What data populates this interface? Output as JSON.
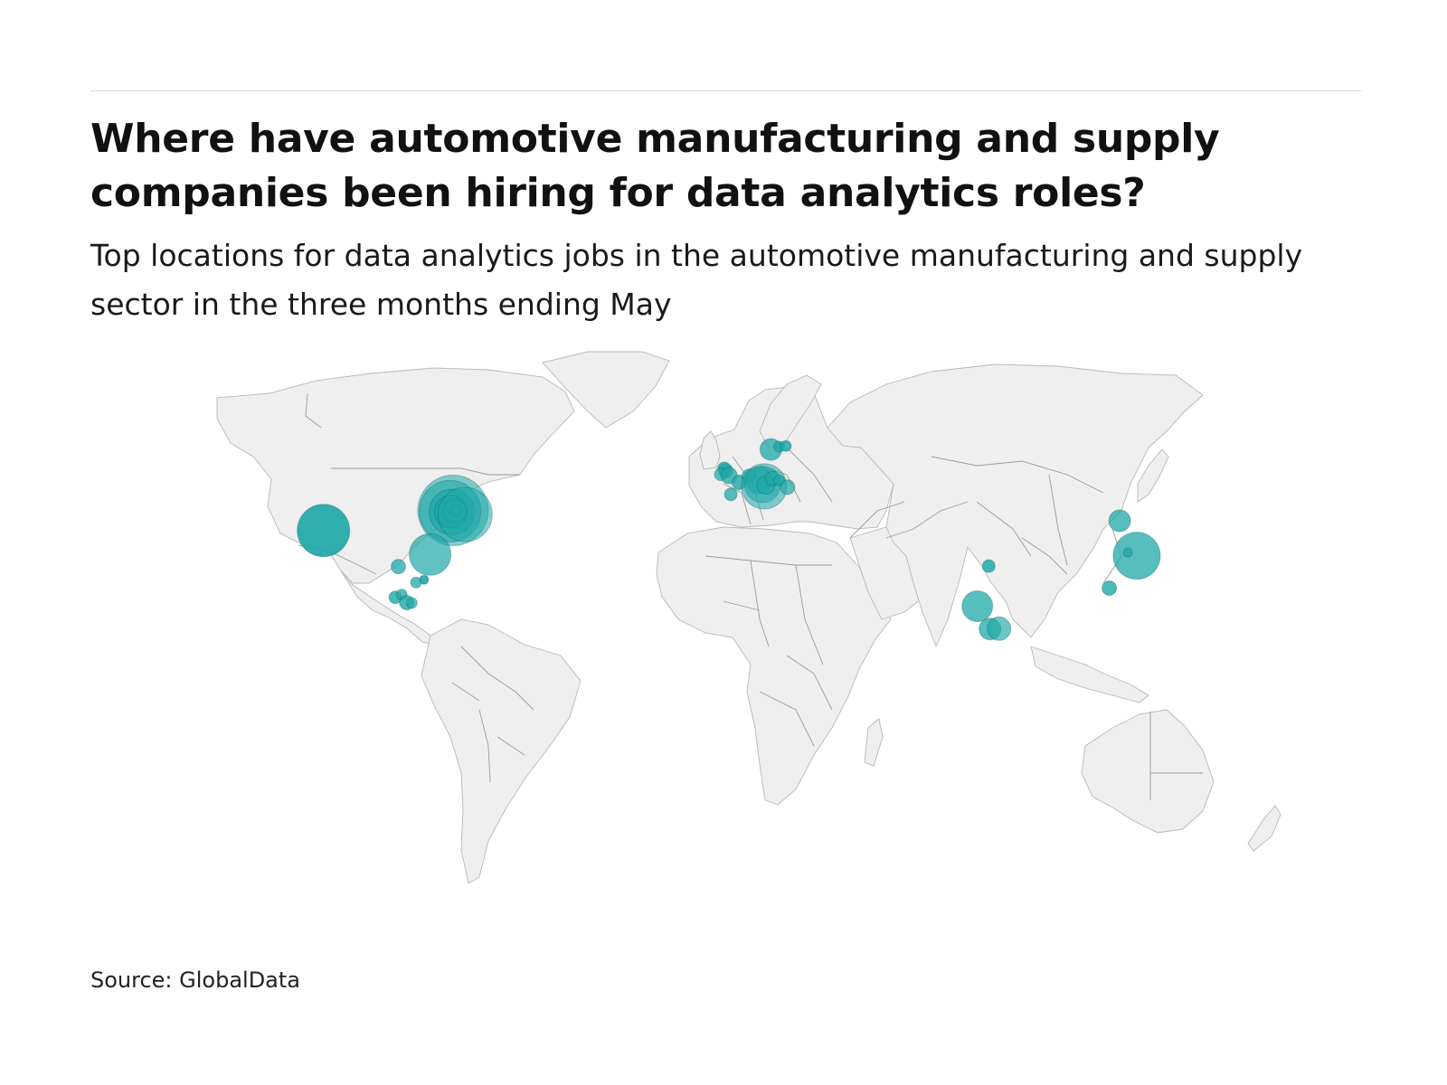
{
  "header": {
    "title": "Where have automotive manufacturing and supply companies been hiring for data analytics roles?",
    "subtitle": "Top locations for data analytics jobs in the automotive manufacturing and supply sector in the three months ending May"
  },
  "footer": {
    "source": "Source: GlobalData"
  },
  "colors": {
    "bubble": "#1fa8a8",
    "land": "#efefef",
    "border": "#9a9a9a"
  },
  "chart_data": {
    "type": "bubble-map",
    "region": "world",
    "points": [
      {
        "lon": -121.9,
        "lat": 37.5,
        "size": 58,
        "opacity": 0.92
      },
      {
        "lon": -83.1,
        "lat": 42.5,
        "size": 78,
        "opacity": 0.55
      },
      {
        "lon": -84.0,
        "lat": 42.3,
        "size": 68,
        "opacity": 0.6
      },
      {
        "lon": -83.5,
        "lat": 42.1,
        "size": 50,
        "opacity": 0.7
      },
      {
        "lon": -83.8,
        "lat": 42.2,
        "size": 36,
        "opacity": 0.75
      },
      {
        "lon": -82.6,
        "lat": 42.4,
        "size": 26,
        "opacity": 0.8
      },
      {
        "lon": -82.3,
        "lat": 42.6,
        "size": 12,
        "opacity": 0.9
      },
      {
        "lon": -79.5,
        "lat": 41.5,
        "size": 60,
        "opacity": 0.55
      },
      {
        "lon": -90.0,
        "lat": 31.5,
        "size": 46,
        "opacity": 0.7
      },
      {
        "lon": -99.5,
        "lat": 28.5,
        "size": 16,
        "opacity": 0.75
      },
      {
        "lon": -94.2,
        "lat": 24.5,
        "size": 12,
        "opacity": 0.75
      },
      {
        "lon": -91.8,
        "lat": 25.2,
        "size": 10,
        "opacity": 0.9
      },
      {
        "lon": -100.4,
        "lat": 20.8,
        "size": 14,
        "opacity": 0.8
      },
      {
        "lon": -98.5,
        "lat": 21.5,
        "size": 12,
        "opacity": 0.75
      },
      {
        "lon": -97.0,
        "lat": 19.5,
        "size": 16,
        "opacity": 0.8
      },
      {
        "lon": -95.5,
        "lat": 19.4,
        "size": 12,
        "opacity": 0.7
      },
      {
        "lon": -1.5,
        "lat": 52.4,
        "size": 16,
        "opacity": 0.75
      },
      {
        "lon": -2.0,
        "lat": 53.0,
        "size": 14,
        "opacity": 0.8
      },
      {
        "lon": -3.0,
        "lat": 51.5,
        "size": 14,
        "opacity": 0.7
      },
      {
        "lon": -0.5,
        "lat": 51.2,
        "size": 18,
        "opacity": 0.75
      },
      {
        "lon": 2.5,
        "lat": 49.5,
        "size": 16,
        "opacity": 0.8
      },
      {
        "lon": 5.5,
        "lat": 51.0,
        "size": 16,
        "opacity": 0.75
      },
      {
        "lon": 8.5,
        "lat": 50.0,
        "size": 30,
        "opacity": 0.7
      },
      {
        "lon": 9.5,
        "lat": 49.0,
        "size": 40,
        "opacity": 0.6
      },
      {
        "lon": 10.0,
        "lat": 48.5,
        "size": 50,
        "opacity": 0.55
      },
      {
        "lon": 10.5,
        "lat": 48.8,
        "size": 20,
        "opacity": 0.75
      },
      {
        "lon": 12.5,
        "lat": 50.5,
        "size": 16,
        "opacity": 0.75
      },
      {
        "lon": 14.5,
        "lat": 50.0,
        "size": 12,
        "opacity": 0.8
      },
      {
        "lon": 17.0,
        "lat": 48.3,
        "size": 16,
        "opacity": 0.7
      },
      {
        "lon": 12.0,
        "lat": 57.7,
        "size": 24,
        "opacity": 0.75
      },
      {
        "lon": 14.5,
        "lat": 58.4,
        "size": 12,
        "opacity": 0.85
      },
      {
        "lon": 16.5,
        "lat": 58.6,
        "size": 12,
        "opacity": 0.85
      },
      {
        "lon": 0.0,
        "lat": 46.5,
        "size": 14,
        "opacity": 0.75
      },
      {
        "lon": 77.2,
        "lat": 28.6,
        "size": 14,
        "opacity": 0.85
      },
      {
        "lon": 73.8,
        "lat": 18.6,
        "size": 34,
        "opacity": 0.75
      },
      {
        "lon": 77.6,
        "lat": 12.9,
        "size": 24,
        "opacity": 0.75
      },
      {
        "lon": 80.3,
        "lat": 13.0,
        "size": 26,
        "opacity": 0.65
      },
      {
        "lon": 116.4,
        "lat": 39.9,
        "size": 24,
        "opacity": 0.75
      },
      {
        "lon": 113.3,
        "lat": 23.1,
        "size": 16,
        "opacity": 0.8
      },
      {
        "lon": 121.5,
        "lat": 31.2,
        "size": 52,
        "opacity": 0.75
      },
      {
        "lon": 118.8,
        "lat": 32.0,
        "size": 10,
        "opacity": 0.8
      }
    ]
  }
}
